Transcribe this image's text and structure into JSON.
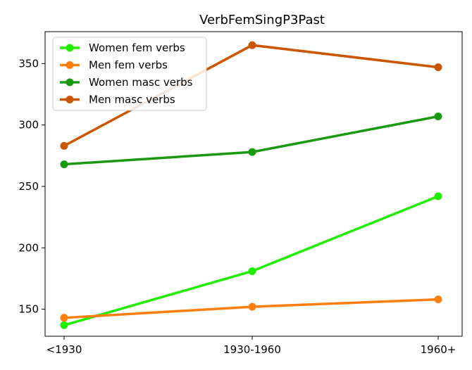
{
  "chart_data": {
    "type": "line",
    "title": "VerbFemSingP3Past",
    "xlabel": "",
    "ylabel": "",
    "categories": [
      "<1930",
      "1930-1960",
      "1960+"
    ],
    "ylim": [
      128,
      376
    ],
    "yticks": [
      150,
      200,
      250,
      300,
      350
    ],
    "grid": false,
    "legend_position": "top-left",
    "series": [
      {
        "name": "Women fem verbs",
        "color": "#22ee00",
        "values": [
          137,
          181,
          242
        ]
      },
      {
        "name": "Men fem verbs",
        "color": "#ff7f0e",
        "values": [
          143,
          152,
          158
        ]
      },
      {
        "name": "Women masc verbs",
        "color": "#1a9a10",
        "values": [
          268,
          278,
          307
        ]
      },
      {
        "name": "Men masc verbs",
        "color": "#cc5500",
        "values": [
          283,
          365,
          347
        ]
      }
    ]
  }
}
